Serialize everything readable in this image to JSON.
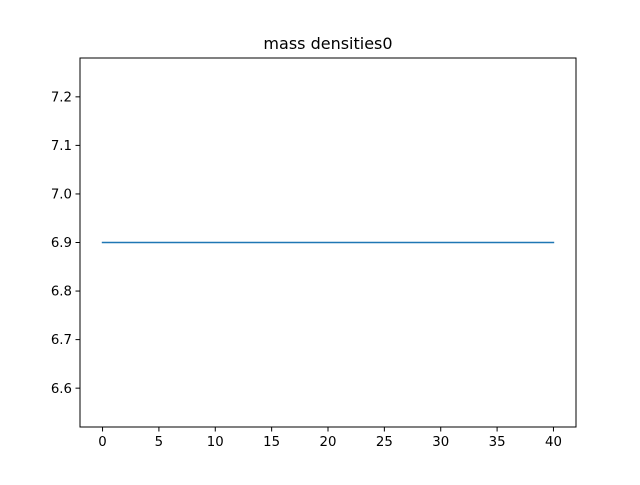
{
  "chart_data": {
    "type": "line",
    "title": "mass densities0",
    "xlabel": "",
    "ylabel": "",
    "xlim": [
      -2,
      42
    ],
    "ylim": [
      6.52,
      7.28
    ],
    "xticks": [
      0,
      5,
      10,
      15,
      20,
      25,
      30,
      35,
      40
    ],
    "xtick_labels": [
      "0",
      "5",
      "10",
      "15",
      "20",
      "25",
      "30",
      "35",
      "40"
    ],
    "yticks": [
      6.6,
      6.7,
      6.8,
      6.9,
      7.0,
      7.1,
      7.2
    ],
    "ytick_labels": [
      "6.6",
      "6.7",
      "6.8",
      "6.9",
      "7.0",
      "7.1",
      "7.2"
    ],
    "grid": false,
    "series": [
      {
        "color": "#1f77b4",
        "x": [
          0,
          40
        ],
        "y": [
          6.9,
          6.9
        ]
      }
    ]
  }
}
